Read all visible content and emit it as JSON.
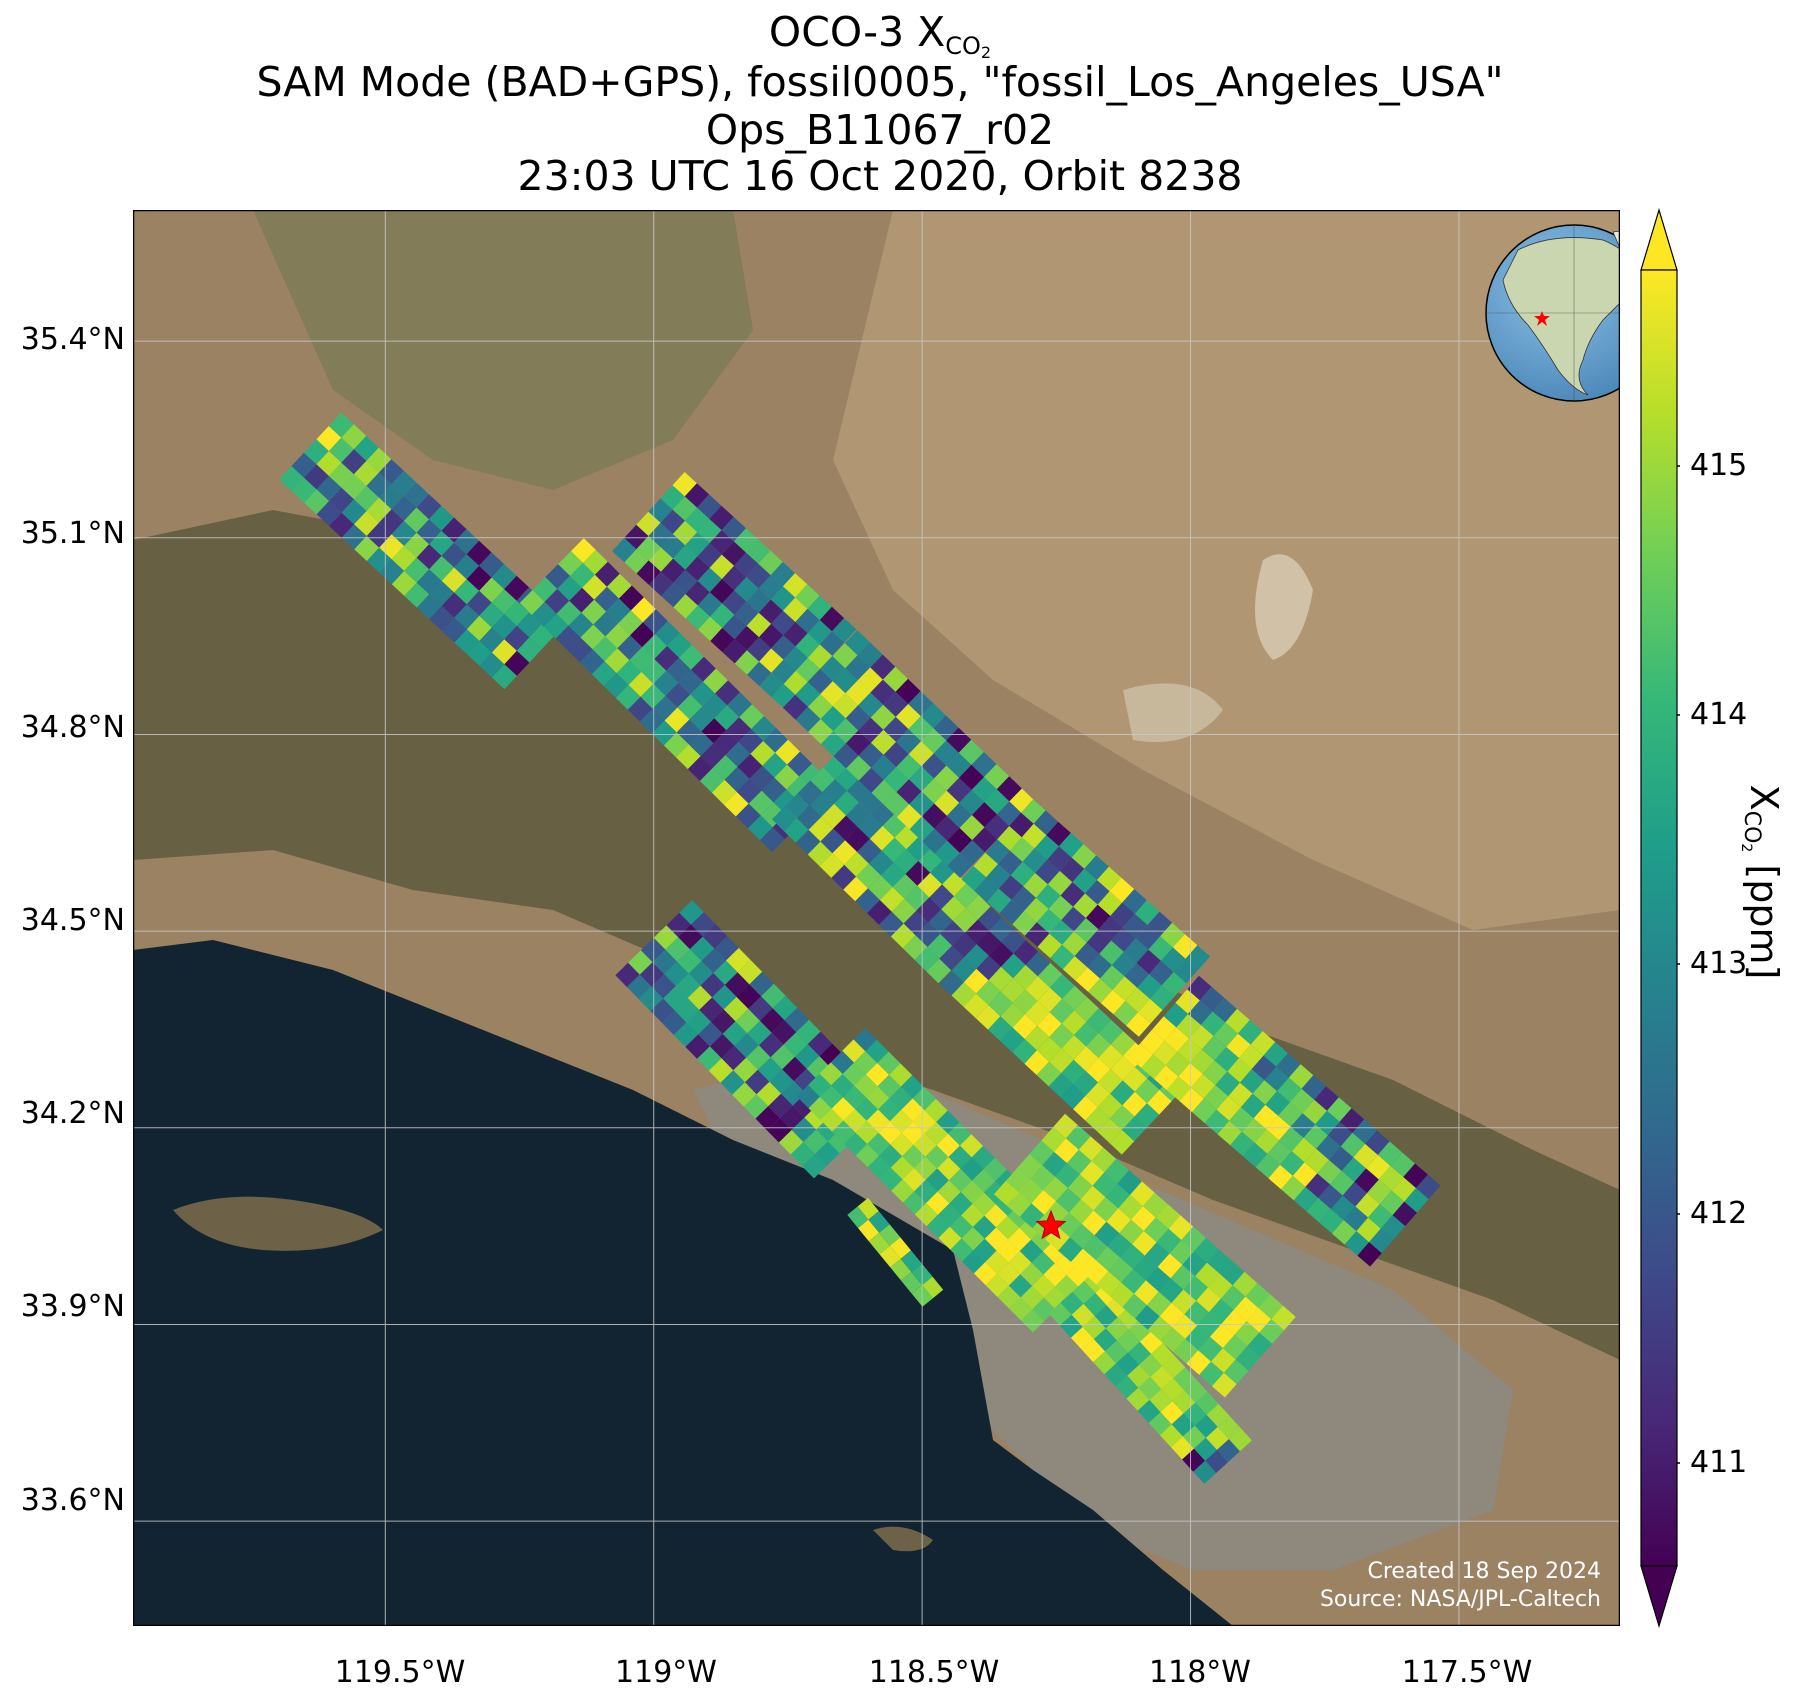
{
  "title": {
    "line1_prefix": "OCO-3 X",
    "line1_sub": "CO",
    "line1_sub2": "2",
    "line2": "SAM Mode (BAD+GPS), fossil0005, \"fossil_Los_Angeles_USA\"",
    "line3": "Ops_B11067_r02",
    "line4": "23:03 UTC 16 Oct 2020, Orbit 8238"
  },
  "axes": {
    "lat_ticks": [
      "35.4°N",
      "35.1°N",
      "34.8°N",
      "34.5°N",
      "34.2°N",
      "33.9°N",
      "33.6°N"
    ],
    "lon_ticks": [
      "119.5°W",
      "119°W",
      "118.5°W",
      "118°W",
      "117.5°W"
    ]
  },
  "colorbar": {
    "label_prefix": "X",
    "label_sub": "CO",
    "label_sub2": "2",
    "label_suffix": " [ppm]",
    "ticks": [
      "415",
      "414",
      "413",
      "412",
      "411"
    ],
    "range": [
      410.6,
      415.8
    ],
    "colormap": "viridis",
    "extend": "both"
  },
  "credit": {
    "created": "Created 18 Sep 2024",
    "source": "Source: NASA/JPL-Caltech"
  },
  "target_marker": {
    "name": "fossil_Los_Angeles_USA",
    "symbol": "red-star",
    "color": "#ff0000"
  },
  "map_colors": {
    "ocean": "#122331",
    "land": "#9a8263",
    "mountain": "#5e5a3c",
    "urban": "#8a8a86",
    "gridline": "#c8c8c8"
  },
  "chart_data": {
    "type": "heatmap",
    "xlabel": "",
    "ylabel": "",
    "xlim": [
      -119.97,
      -117.2
    ],
    "ylim": [
      33.44,
      35.6
    ],
    "x_ticks": [
      -119.5,
      -119.0,
      -118.5,
      -118.0,
      -117.5
    ],
    "y_ticks": [
      35.4,
      35.1,
      34.8,
      34.5,
      34.2,
      33.9,
      33.6
    ],
    "color_range_ppm": [
      410.6,
      415.8
    ],
    "colorbar_ticks": [
      411,
      412,
      413,
      414,
      415
    ],
    "target": {
      "lon": -118.26,
      "lat": 34.05
    },
    "swaths": [
      {
        "start": [
          -119.64,
          35.24
        ],
        "end": [
          -119.22,
          34.92
        ],
        "width_deg": 0.17
      },
      {
        "start": [
          -119.19,
          35.05
        ],
        "end": [
          -118.72,
          34.67
        ],
        "width_deg": 0.17
      },
      {
        "start": [
          -118.72,
          34.72
        ],
        "end": [
          -118.41,
          34.47
        ],
        "width_deg": 0.17
      },
      {
        "start": [
          -118.41,
          34.47
        ],
        "end": [
          -118.07,
          34.21
        ],
        "width_deg": 0.17
      },
      {
        "start": [
          -119.01,
          35.14
        ],
        "end": [
          -118.69,
          34.9
        ],
        "width_deg": 0.2
      },
      {
        "start": [
          -118.69,
          34.9
        ],
        "end": [
          -118.36,
          34.64
        ],
        "width_deg": 0.2
      },
      {
        "start": [
          -118.36,
          34.64
        ],
        "end": [
          -118.03,
          34.4
        ],
        "width_deg": 0.2
      },
      {
        "start": [
          -118.05,
          34.37
        ],
        "end": [
          -117.6,
          34.05
        ],
        "width_deg": 0.2
      },
      {
        "start": [
          -119.0,
          34.49
        ],
        "end": [
          -118.63,
          34.18
        ],
        "width_deg": 0.2
      },
      {
        "start": [
          -118.67,
          34.3
        ],
        "end": [
          -118.23,
          33.94
        ],
        "width_deg": 0.18
      },
      {
        "start": [
          -118.22,
          33.95
        ],
        "end": [
          -117.93,
          33.69
        ],
        "width_deg": 0.12
      },
      {
        "start": [
          -118.3,
          34.16
        ],
        "end": [
          -117.87,
          33.85
        ],
        "width_deg": 0.2
      },
      {
        "start": [
          -118.62,
          34.08
        ],
        "end": [
          -118.48,
          33.94
        ],
        "width_deg": 0.05
      }
    ]
  }
}
